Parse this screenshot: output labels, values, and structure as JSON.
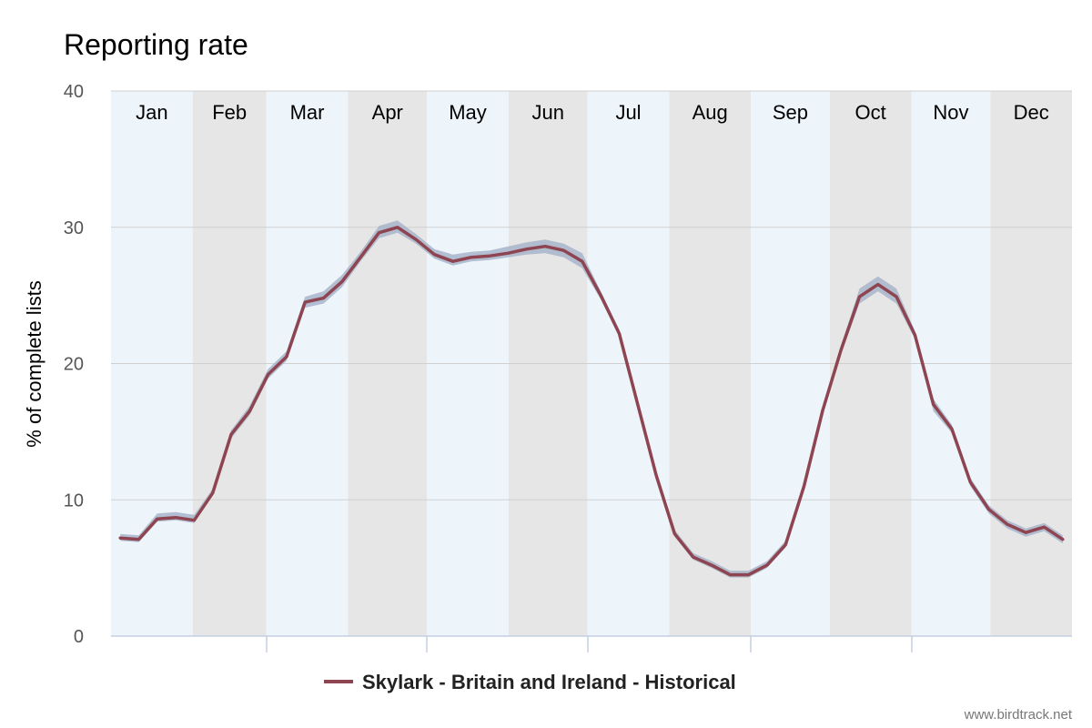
{
  "colors": {
    "band_light": "#edf5fb",
    "band_dark": "#e6e6e6",
    "gridline": "#d0d0d0",
    "axis": "#c3cfdf",
    "series_line": "#8e4451",
    "confidence_band": "#a7b4c9"
  },
  "credit": "www.birdtrack.net",
  "chart_data": {
    "type": "line",
    "title": "Reporting rate",
    "ylabel": "% of complete lists",
    "xlabel": "",
    "ylim": [
      0,
      40
    ],
    "yticks": [
      0,
      10,
      20,
      30,
      40
    ],
    "grid": true,
    "legend_placement": "bottom-center",
    "months": [
      "Jan",
      "Feb",
      "Mar",
      "Apr",
      "May",
      "Jun",
      "Jul",
      "Aug",
      "Sep",
      "Oct",
      "Nov",
      "Dec"
    ],
    "series": [
      {
        "name": "Skylark - Britain and Ireland - Historical",
        "x": [
          1,
          2,
          3,
          4,
          5,
          6,
          7,
          8,
          9,
          10,
          11,
          12,
          13,
          14,
          15,
          16,
          17,
          18,
          19,
          20,
          21,
          22,
          23,
          24,
          25,
          26,
          27,
          28,
          29,
          30,
          31,
          32,
          33,
          34,
          35,
          36,
          37,
          38,
          39,
          40,
          41,
          42,
          43,
          44,
          45,
          46,
          47,
          48,
          49,
          50,
          51,
          52
        ],
        "values": [
          7.2,
          7.1,
          8.6,
          8.7,
          8.5,
          10.5,
          14.8,
          16.5,
          19.2,
          20.5,
          24.5,
          24.8,
          26.0,
          27.8,
          29.6,
          30.0,
          29.1,
          28.0,
          27.5,
          27.8,
          27.9,
          28.1,
          28.4,
          28.6,
          28.3,
          27.5,
          25.0,
          22.2,
          17.0,
          11.8,
          7.5,
          5.8,
          5.2,
          4.5,
          4.5,
          5.2,
          6.7,
          11.0,
          16.5,
          21.0,
          24.9,
          25.8,
          24.9,
          22.1,
          17.0,
          15.2,
          11.3,
          9.3,
          8.2,
          7.6,
          8.0,
          7.1
        ],
        "lower": [
          7.0,
          6.9,
          8.4,
          8.5,
          8.3,
          10.3,
          14.5,
          16.2,
          18.9,
          20.2,
          24.1,
          24.4,
          25.6,
          27.5,
          29.2,
          29.6,
          28.8,
          27.7,
          27.2,
          27.5,
          27.6,
          27.8,
          28.0,
          28.1,
          27.8,
          27.0,
          24.7,
          22.0,
          16.8,
          11.6,
          7.3,
          5.6,
          5.0,
          4.3,
          4.3,
          5.0,
          6.5,
          10.8,
          16.3,
          20.7,
          24.4,
          25.3,
          24.4,
          21.8,
          16.5,
          14.9,
          11.0,
          9.0,
          7.9,
          7.3,
          7.7,
          6.8
        ],
        "upper": [
          7.5,
          7.4,
          9.0,
          9.1,
          8.9,
          10.8,
          15.1,
          16.9,
          19.6,
          20.9,
          24.9,
          25.3,
          26.5,
          28.2,
          30.1,
          30.5,
          29.5,
          28.4,
          28.0,
          28.2,
          28.3,
          28.6,
          28.9,
          29.1,
          28.8,
          28.1,
          25.3,
          22.5,
          17.3,
          12.0,
          7.8,
          6.1,
          5.5,
          4.8,
          4.8,
          5.5,
          7.0,
          11.3,
          16.8,
          21.3,
          25.5,
          26.4,
          25.5,
          22.4,
          17.4,
          15.5,
          11.6,
          9.6,
          8.5,
          7.9,
          8.3,
          7.4
        ]
      }
    ]
  }
}
